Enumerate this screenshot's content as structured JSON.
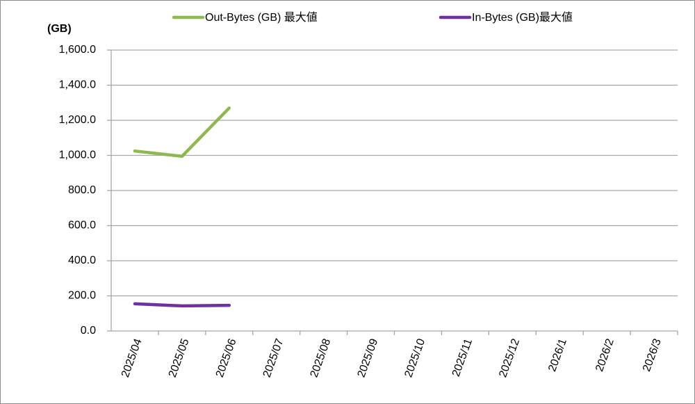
{
  "chart_data": {
    "type": "line",
    "ylabel": "(GB)",
    "categories": [
      "2025/04",
      "2025/05",
      "2025/06",
      "2025/07",
      "2025/08",
      "2025/09",
      "2025/10",
      "2025/11",
      "2025/12",
      "2026/1",
      "2026/2",
      "2026/3"
    ],
    "series": [
      {
        "name": "Out-Bytes (GB) 最大値",
        "color": "#8db94f",
        "values": [
          1025,
          995,
          1270,
          null,
          null,
          null,
          null,
          null,
          null,
          null,
          null,
          null
        ]
      },
      {
        "name": "In-Bytes (GB)最大値",
        "color": "#7030a0",
        "values": [
          155,
          143,
          146,
          null,
          null,
          null,
          null,
          null,
          null,
          null,
          null,
          null
        ]
      }
    ],
    "ylim": [
      0,
      1600
    ],
    "yticks": [
      {
        "value": 0,
        "label": "0.0"
      },
      {
        "value": 200,
        "label": "200.0"
      },
      {
        "value": 400,
        "label": "400.0"
      },
      {
        "value": 600,
        "label": "600.0"
      },
      {
        "value": 800,
        "label": "800.0"
      },
      {
        "value": 1000,
        "label": "1,000.0"
      },
      {
        "value": 1200,
        "label": "1,200.0"
      },
      {
        "value": 1400,
        "label": "1,400.0"
      },
      {
        "value": 1600,
        "label": "1,600.0"
      }
    ],
    "grid": true
  }
}
